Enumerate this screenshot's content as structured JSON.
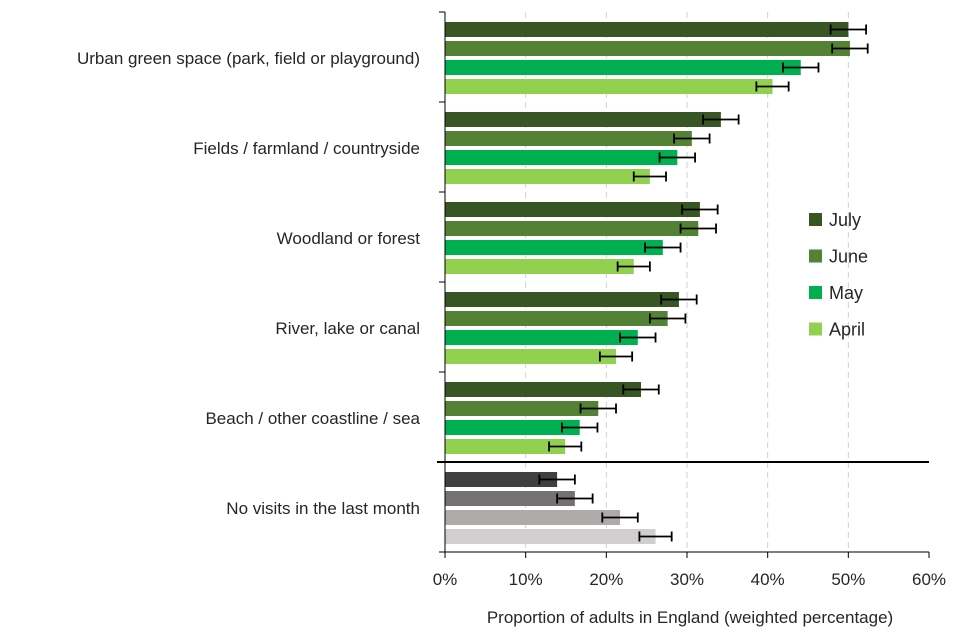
{
  "chart_data": {
    "type": "bar",
    "orientation": "horizontal",
    "title": "",
    "xlabel": "Proportion of adults in England (weighted percentage)",
    "ylabel": "",
    "xlim": [
      0,
      60
    ],
    "x_ticks": [
      "0%",
      "10%",
      "20%",
      "30%",
      "40%",
      "50%",
      "60%"
    ],
    "grid": "vertical dashed",
    "legend_position": "right",
    "categories": [
      "Urban green space (park, field or playground)",
      "Fields / farmland / countryside",
      "Woodland or forest",
      "River, lake or canal",
      "Beach / other coastline / sea",
      "No visits in the last month"
    ],
    "series": [
      {
        "name": "July",
        "color": "#375623",
        "alt_color": "#404040",
        "values": [
          50.0,
          34.2,
          31.6,
          29.0,
          24.3,
          13.9
        ],
        "error": 2.2
      },
      {
        "name": "June",
        "color": "#548235",
        "alt_color": "#767171",
        "values": [
          50.2,
          30.6,
          31.4,
          27.6,
          19.0,
          16.1
        ],
        "error": 2.2
      },
      {
        "name": "May",
        "color": "#00b050",
        "alt_color": "#aeaaaa",
        "values": [
          44.1,
          28.8,
          27.0,
          23.9,
          16.7,
          21.7
        ],
        "error": 2.2
      },
      {
        "name": "April",
        "color": "#92d050",
        "alt_color": "#d0cece",
        "values": [
          40.6,
          25.4,
          23.4,
          21.2,
          14.9,
          26.1
        ],
        "error": 2.0
      }
    ]
  }
}
